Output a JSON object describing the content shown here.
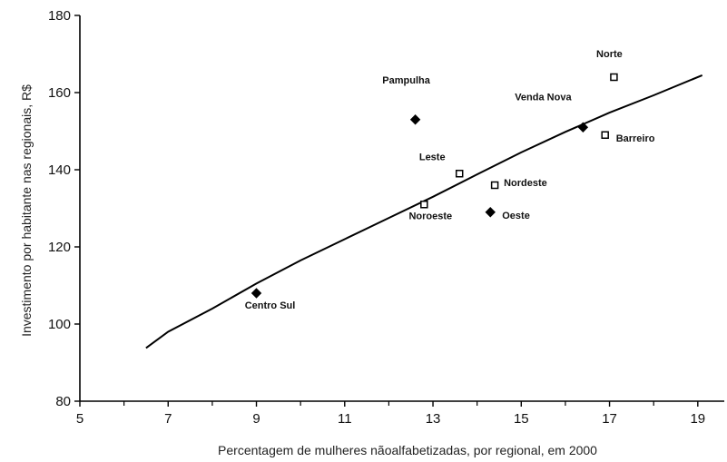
{
  "chart_data": {
    "type": "scatter",
    "title": "",
    "xlabel": "Percentagem de mulheres nãoalfabetizadas, por regional, em 2000",
    "ylabel": "Investimento por habitante nas regionais, R$",
    "xlim": [
      5,
      19.6
    ],
    "ylim": [
      80,
      180
    ],
    "x_ticks": [
      5,
      7,
      9,
      11,
      13,
      15,
      17,
      19
    ],
    "y_ticks": [
      80,
      100,
      120,
      140,
      160,
      180
    ],
    "grid": false,
    "legend": "none",
    "points": [
      {
        "label": "Norte",
        "x": 17.1,
        "y": 164,
        "marker": "open-square"
      },
      {
        "label": "Pampulha",
        "x": 12.6,
        "y": 153,
        "marker": "filled-diamond"
      },
      {
        "label": "Venda Nova",
        "x": 16.4,
        "y": 151,
        "marker": "filled-diamond"
      },
      {
        "label": "Barreiro",
        "x": 16.9,
        "y": 149,
        "marker": "open-square"
      },
      {
        "label": "Leste",
        "x": 13.6,
        "y": 139,
        "marker": "open-square"
      },
      {
        "label": "Nordeste",
        "x": 14.4,
        "y": 136,
        "marker": "open-square"
      },
      {
        "label": "Noroeste",
        "x": 12.8,
        "y": 131,
        "marker": "open-square"
      },
      {
        "label": "Oeste",
        "x": 14.3,
        "y": 129,
        "marker": "filled-diamond"
      },
      {
        "label": "Centro Sul",
        "x": 9.0,
        "y": 108,
        "marker": "filled-diamond"
      }
    ],
    "trend_line": {
      "x": [
        6.5,
        7.0,
        8.0,
        9.0,
        10.0,
        11.0,
        12.0,
        13.0,
        14.0,
        15.0,
        16.0,
        17.0,
        18.0,
        19.1
      ],
      "y": [
        93.8,
        98.0,
        104.0,
        110.5,
        116.5,
        122.0,
        127.5,
        133.0,
        138.8,
        144.5,
        149.8,
        154.8,
        159.3,
        164.5
      ]
    }
  }
}
